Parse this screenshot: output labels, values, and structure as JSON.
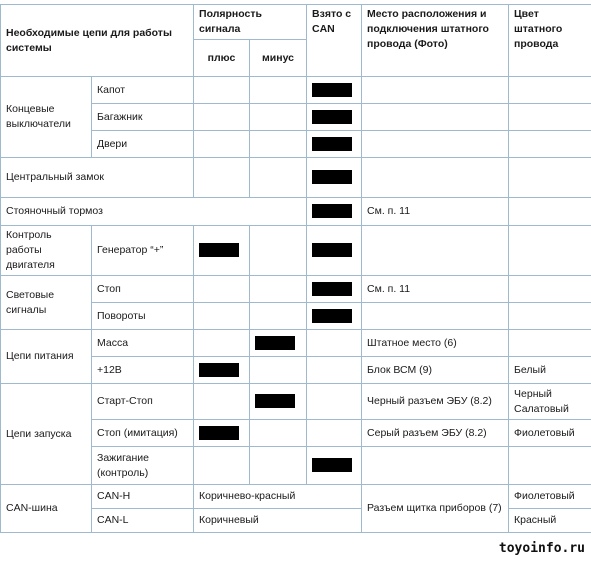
{
  "headers": {
    "circuits": "Необходимые цепи для работы системы",
    "polarity": "Полярность сигнала",
    "plus": "плюс",
    "minus": "минус",
    "can": "Взято с CAN",
    "location": "Место расположения и подключения штатного провода (Фото)",
    "color": "Цвет штатного провода"
  },
  "groups": {
    "end_switches": "Концевые выключатели",
    "central_lock": "Центральный замок",
    "parking_brake": "Стояночный тормоз",
    "engine_control": "Контроль работы двигателя",
    "light_signals": "Световые сигналы",
    "power": "Цепи питания",
    "start": "Цепи запуска",
    "can_bus": "CAN-шина"
  },
  "rows": {
    "hood": "Капот",
    "trunk": "Багажник",
    "doors": "Двери",
    "generator": "Генератор “+”",
    "stop": "Стоп",
    "turns": "Повороты",
    "ground": "Масса",
    "plus12": "+12В",
    "start_stop": "Старт-Стоп",
    "stop_imitation": "Стоп (имитация)",
    "ignition": "Зажигание (контроль)",
    "can_h": "CAN-H",
    "can_l": "CAN-L"
  },
  "values": {
    "see_11_a": "См. п. 11",
    "see_11_b": "См. п. 11",
    "ground_loc": "Штатное место (6)",
    "bcm": "Блок ВСМ (9)",
    "white": "Белый",
    "ecu_black": "Черный разъем ЭБУ (8.2)",
    "black_lightgreen": "Черный\nСалатовый",
    "ecu_gray": "Серый разъем ЭБУ (8.2)",
    "violet_a": "Фиолетовый",
    "brown_red": "Коричнево-красный",
    "brown": "Коричневый",
    "dash_conn": "Разъем щитка приборов (7)",
    "violet_b": "Фиолетовый",
    "red": "Красный"
  },
  "watermark": "toyoinfo.ru"
}
